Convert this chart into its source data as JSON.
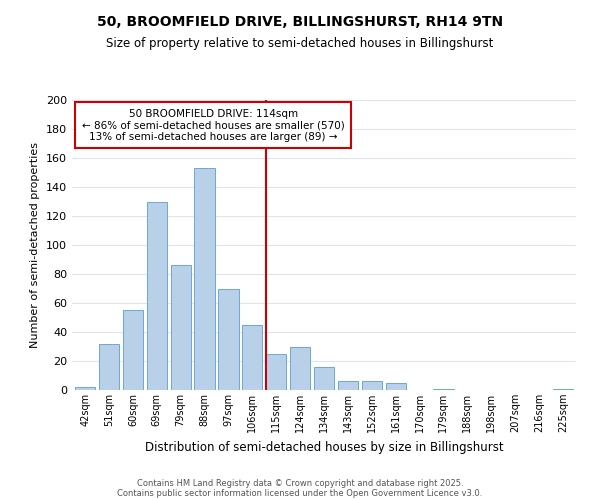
{
  "title": "50, BROOMFIELD DRIVE, BILLINGSHURST, RH14 9TN",
  "subtitle": "Size of property relative to semi-detached houses in Billingshurst",
  "xlabel": "Distribution of semi-detached houses by size in Billingshurst",
  "ylabel": "Number of semi-detached properties",
  "categories": [
    "42sqm",
    "51sqm",
    "60sqm",
    "69sqm",
    "79sqm",
    "88sqm",
    "97sqm",
    "106sqm",
    "115sqm",
    "124sqm",
    "134sqm",
    "143sqm",
    "152sqm",
    "161sqm",
    "170sqm",
    "179sqm",
    "188sqm",
    "198sqm",
    "207sqm",
    "216sqm",
    "225sqm"
  ],
  "bar_heights": [
    2,
    32,
    55,
    130,
    86,
    153,
    70,
    45,
    25,
    30,
    16,
    6,
    6,
    5,
    0,
    1,
    0,
    0,
    0,
    0,
    1
  ],
  "bar_color": "#b8d0e8",
  "bar_edge_color": "#6aaad4",
  "vline_color": "#cc0000",
  "annotation_title": "50 BROOMFIELD DRIVE: 114sqm",
  "annotation_line1": "← 86% of semi-detached houses are smaller (570)",
  "annotation_line2": "13% of semi-detached houses are larger (89) →",
  "annotation_box_color": "#ffffff",
  "annotation_box_edge": "#cc0000",
  "ylim": [
    0,
    200
  ],
  "yticks": [
    0,
    20,
    40,
    60,
    80,
    100,
    120,
    140,
    160,
    180,
    200
  ],
  "footnote1": "Contains HM Land Registry data © Crown copyright and database right 2025.",
  "footnote2": "Contains public sector information licensed under the Open Government Licence v3.0.",
  "background_color": "#ffffff",
  "grid_color": "#dce6f1"
}
